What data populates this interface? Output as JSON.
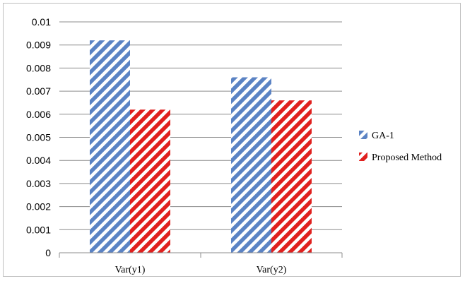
{
  "chart_data": {
    "type": "bar",
    "categories": [
      "Var(y1)",
      "Var(y2)"
    ],
    "series": [
      {
        "name": "GA-1",
        "values": [
          0.0092,
          0.0076
        ],
        "color": "#5b83c4",
        "pattern": "diagonal-stripes"
      },
      {
        "name": "Proposed Method",
        "values": [
          0.0062,
          0.0066
        ],
        "color": "#e0201e",
        "pattern": "diagonal-stripes"
      }
    ],
    "ylim": [
      0,
      0.01
    ],
    "yticks": [
      "0",
      "0.001",
      "0.002",
      "0.003",
      "0.004",
      "0.005",
      "0.006",
      "0.007",
      "0.008",
      "0.009",
      "0.01"
    ],
    "ytick_values": [
      0,
      0.001,
      0.002,
      0.003,
      0.004,
      0.005,
      0.006,
      0.007,
      0.008,
      0.009,
      0.01
    ],
    "title": "",
    "xlabel": "",
    "ylabel": "",
    "grid": true,
    "legend": "right"
  }
}
